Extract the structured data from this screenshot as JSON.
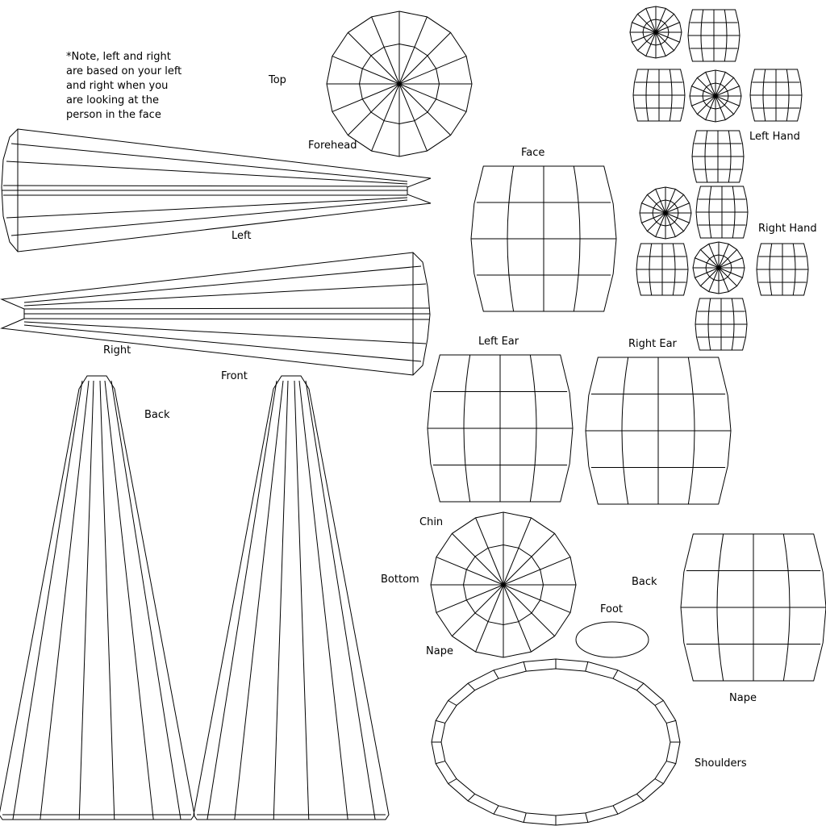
{
  "note": "*Note, left and right are based on your left and right when you are looking at the person in the face",
  "labels": {
    "top": "Top",
    "forehead": "Forehead",
    "face": "Face",
    "left": "Left",
    "right": "Right",
    "front": "Front",
    "back_cone": "Back",
    "left_hand": "Left Hand",
    "right_hand": "Right Hand",
    "left_ear": "Left Ear",
    "right_ear": "Right Ear",
    "chin": "Chin",
    "bottom": "Bottom",
    "nape_disc": "Nape",
    "back_barrel": "Back",
    "foot": "Foot",
    "nape_barrel": "Nape",
    "shoulders": "Shoulders"
  },
  "colors": {
    "line": "#000000",
    "background": "#ffffff"
  }
}
